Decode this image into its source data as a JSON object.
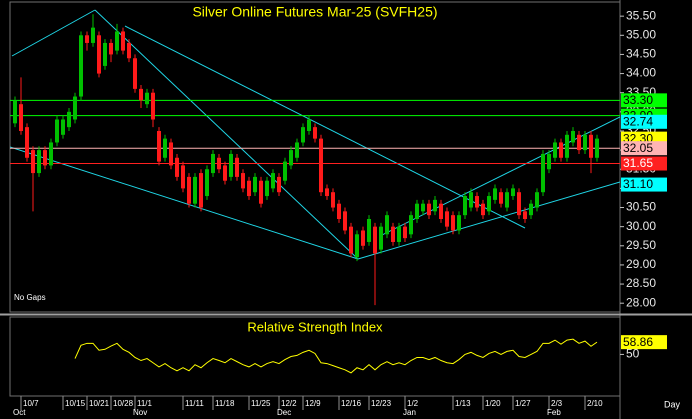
{
  "chart_data": [
    {
      "type": "candlestick",
      "title": "Silver Online Futures Mar-25 (SVFH25)",
      "note": "No Gaps",
      "x_unit_label": "Day",
      "categories": [
        null,
        "10/7",
        null,
        null,
        null,
        null,
        null,
        null,
        "10/15",
        null,
        null,
        null,
        "10/21",
        null,
        null,
        null,
        "10/28",
        null,
        null,
        null,
        "11/1",
        null,
        null,
        null,
        null,
        null,
        null,
        null,
        "11/11",
        null,
        null,
        null,
        null,
        "11/18",
        null,
        null,
        null,
        null,
        null,
        "11/25",
        null,
        null,
        null,
        null,
        "12/2",
        null,
        null,
        null,
        "12/9",
        null,
        null,
        null,
        null,
        null,
        "12/16",
        null,
        null,
        null,
        null,
        "12/23",
        null,
        null,
        null,
        null,
        null,
        "1/2",
        null,
        null,
        null,
        null,
        null,
        null,
        null,
        "1/13",
        null,
        null,
        null,
        null,
        "1/20",
        null,
        null,
        null,
        null,
        "1/27",
        null,
        null,
        null,
        null,
        null,
        "2/3",
        null,
        null,
        null,
        null,
        null,
        "2/10",
        null,
        null
      ],
      "months": [
        "Oct",
        null,
        null,
        null,
        null,
        null,
        null,
        null,
        null,
        null,
        null,
        null,
        null,
        null,
        null,
        null,
        null,
        null,
        null,
        null,
        "Nov",
        null,
        null,
        null,
        null,
        null,
        null,
        null,
        null,
        null,
        null,
        null,
        null,
        null,
        null,
        null,
        null,
        null,
        null,
        null,
        null,
        null,
        null,
        null,
        "Dec",
        null,
        null,
        null,
        null,
        null,
        null,
        null,
        null,
        null,
        null,
        null,
        null,
        null,
        null,
        null,
        null,
        null,
        null,
        null,
        null,
        "Jan",
        null,
        null,
        null,
        null,
        null,
        null,
        null,
        null,
        null,
        null,
        null,
        null,
        null,
        null,
        null,
        null,
        null,
        null,
        null,
        null,
        null,
        null,
        null,
        "Feb",
        null,
        null,
        null,
        null,
        null,
        null,
        null,
        null
      ],
      "open": [
        32.7,
        33.2,
        32.6,
        32.0,
        31.4,
        32.0,
        31.6,
        32.2,
        32.4,
        32.6,
        32.8,
        33.4,
        35.0,
        34.8,
        35.0,
        34.2,
        34.8,
        34.6,
        35.1,
        34.8,
        34.4,
        33.6,
        33.2,
        33.5,
        32.5,
        31.8,
        32.2,
        31.8,
        31.6,
        31.3,
        30.6,
        31.4,
        30.8,
        31.4,
        31.8,
        31.6,
        31.3,
        31.8,
        31.4,
        31.2,
        30.9,
        31.2,
        30.8,
        31.0,
        31.3,
        31.2,
        31.6,
        31.8,
        32.2,
        32.5,
        32.6,
        32.3,
        31.0,
        30.9,
        30.6,
        30.4,
        30.0,
        29.2,
        29.9,
        29.6,
        30.0,
        29.4,
        29.8,
        30.0,
        29.6,
        30.0,
        29.8,
        30.2,
        30.4,
        30.6,
        30.4,
        30.6,
        30.4,
        30.3,
        29.9,
        30.3,
        30.5,
        30.8,
        30.6,
        30.4,
        30.7,
        30.9,
        30.5,
        30.8,
        30.9,
        30.4,
        30.3,
        30.5,
        30.9,
        31.5,
        31.8,
        32.2,
        31.8,
        32.2,
        32.4,
        32.0,
        32.4,
        31.8
      ],
      "high": [
        33.4,
        33.9,
        32.7,
        32.1,
        32.1,
        32.1,
        32.3,
        32.9,
        32.9,
        33.1,
        33.5,
        35.1,
        35.1,
        35.55,
        35.1,
        34.9,
        34.9,
        35.3,
        35.2,
        34.9,
        34.5,
        33.7,
        33.6,
        33.6,
        32.6,
        32.4,
        32.3,
        31.9,
        31.7,
        31.4,
        31.4,
        31.5,
        31.6,
        32.0,
        31.9,
        31.7,
        32.0,
        31.9,
        31.5,
        31.3,
        31.4,
        31.3,
        31.3,
        31.5,
        31.4,
        31.8,
        32.1,
        32.3,
        32.7,
        32.9,
        32.7,
        32.4,
        31.1,
        31.0,
        30.7,
        30.5,
        30.1,
        29.9,
        30.0,
        30.3,
        30.1,
        30.1,
        30.4,
        30.1,
        30.1,
        30.1,
        30.4,
        30.7,
        30.7,
        30.7,
        30.8,
        30.7,
        30.5,
        30.4,
        30.4,
        30.9,
        31.0,
        30.9,
        30.7,
        30.9,
        31.1,
        31.0,
        31.0,
        31.1,
        31.0,
        30.5,
        30.7,
        31.0,
        32.0,
        32.0,
        32.3,
        32.3,
        32.5,
        32.6,
        32.5,
        32.5,
        32.5,
        32.4
      ],
      "low": [
        32.6,
        32.4,
        31.7,
        30.4,
        31.3,
        31.5,
        31.5,
        32.1,
        32.3,
        32.5,
        32.7,
        33.3,
        34.6,
        34.7,
        33.9,
        34.1,
        34.3,
        34.5,
        34.5,
        34.3,
        33.5,
        33.1,
        33.1,
        32.6,
        31.6,
        31.7,
        31.5,
        31.2,
        30.9,
        30.5,
        30.5,
        30.4,
        30.7,
        31.3,
        31.4,
        31.1,
        31.2,
        31.2,
        30.9,
        30.7,
        30.8,
        30.5,
        30.7,
        30.9,
        30.8,
        31.1,
        31.5,
        31.7,
        32.1,
        32.4,
        32.2,
        30.8,
        30.7,
        30.4,
        30.1,
        29.8,
        29.2,
        29.1,
        29.4,
        29.5,
        27.95,
        29.3,
        29.7,
        29.5,
        29.5,
        29.6,
        29.7,
        30.1,
        30.3,
        30.2,
        30.3,
        30.1,
        29.9,
        29.8,
        29.8,
        30.2,
        30.4,
        30.4,
        30.2,
        30.3,
        30.6,
        30.5,
        30.4,
        30.7,
        30.2,
        30.1,
        30.2,
        30.4,
        30.8,
        31.4,
        31.7,
        31.7,
        31.7,
        32.1,
        31.9,
        31.9,
        31.4,
        31.7
      ],
      "close": [
        33.3,
        32.5,
        31.8,
        31.4,
        32.0,
        31.6,
        32.2,
        32.8,
        32.8,
        33.0,
        33.4,
        35.0,
        34.8,
        35.2,
        34.0,
        34.8,
        34.5,
        35.1,
        34.6,
        34.4,
        33.6,
        33.3,
        33.5,
        32.8,
        31.7,
        32.3,
        31.6,
        31.3,
        31.0,
        30.6,
        31.3,
        30.5,
        31.5,
        31.9,
        31.5,
        31.2,
        31.9,
        31.3,
        31.0,
        30.8,
        31.3,
        30.6,
        31.2,
        31.4,
        30.9,
        31.7,
        32.0,
        32.2,
        32.6,
        32.8,
        32.3,
        30.9,
        30.8,
        30.5,
        30.2,
        29.9,
        29.3,
        29.8,
        29.5,
        30.2,
        29.3,
        30.0,
        30.3,
        29.6,
        30.0,
        29.7,
        30.3,
        30.6,
        30.6,
        30.3,
        30.7,
        30.2,
        30.0,
        29.9,
        30.3,
        30.8,
        30.9,
        30.5,
        30.3,
        30.8,
        31.0,
        30.6,
        30.9,
        31.0,
        30.3,
        30.2,
        30.6,
        30.9,
        31.9,
        31.9,
        32.2,
        31.8,
        32.4,
        32.5,
        32.0,
        32.4,
        31.8,
        32.3
      ],
      "up_color": "#00c000",
      "down_color": "#ff1a1a",
      "ylim": [
        27.77,
        35.87
      ],
      "yticks": [
        {
          "value": 28,
          "label": "28.00"
        },
        {
          "value": 28.5,
          "label": "28.50"
        },
        {
          "value": 29,
          "label": "29.00"
        },
        {
          "value": 29.5,
          "label": "29.50"
        },
        {
          "value": 30,
          "label": "30.00"
        },
        {
          "value": 30.5,
          "label": "30.50"
        },
        {
          "value": 31,
          "label": "31.00"
        },
        {
          "value": 31.5,
          "label": "31.50"
        },
        {
          "value": 32,
          "label": "32.00"
        },
        {
          "value": 32.5,
          "label": "32.50"
        },
        {
          "value": 33,
          "label": "33.00"
        },
        {
          "value": 33.5,
          "label": "33.50"
        },
        {
          "value": 34,
          "label": "34.00"
        },
        {
          "value": 34.5,
          "label": "34.50"
        },
        {
          "value": 35,
          "label": "35.00"
        },
        {
          "value": 35.5,
          "label": "35.50"
        }
      ],
      "levels": [
        {
          "value": 33.3,
          "label": "33.30",
          "color": "#00ff00",
          "text_color": "#000000",
          "line": true
        },
        {
          "value": 32.9,
          "label": "32.90",
          "color": "#00ff00",
          "text_color": "#000000",
          "line": true
        },
        {
          "value": 32.74,
          "label": "32.74",
          "color": "#00ffff",
          "text_color": "#000000",
          "line": false
        },
        {
          "value": 32.3,
          "label": "32.30",
          "color": "#ffff00",
          "text_color": "#000000",
          "line": false
        },
        {
          "value": 32.05,
          "label": "32.05",
          "color": "#ffb4b4",
          "text_color": "#000000",
          "line": true
        },
        {
          "value": 31.65,
          "label": "31.65",
          "color": "#ff2020",
          "text_color": "#ffffff",
          "line": true
        },
        {
          "value": 31.1,
          "label": "31.10",
          "color": "#00ffff",
          "text_color": "#000000",
          "line": false
        }
      ]
    },
    {
      "type": "line",
      "title": "Relative Strength Index",
      "values": [
        null,
        null,
        null,
        null,
        null,
        null,
        null,
        null,
        null,
        null,
        47,
        56.6,
        58,
        58,
        53,
        53.7,
        56,
        58,
        53.7,
        51.5,
        47.8,
        45.6,
        47,
        44,
        41,
        43.4,
        40.4,
        38.2,
        40.4,
        38.2,
        42.6,
        40.4,
        44,
        47,
        45.6,
        44,
        47,
        44.8,
        42.6,
        41,
        43.4,
        41,
        43.4,
        44.8,
        43.4,
        46.3,
        48.5,
        49.3,
        51.5,
        53,
        50.7,
        44,
        43.4,
        41.9,
        40.4,
        38.9,
        36.7,
        40.4,
        38.9,
        42.6,
        38.9,
        42.6,
        44.8,
        42.6,
        44,
        42.6,
        45.6,
        47.8,
        47.8,
        46.3,
        47.8,
        45.6,
        44,
        43.4,
        46.3,
        50,
        51.5,
        49.3,
        47.8,
        50.7,
        52.2,
        50,
        52.2,
        53,
        48.5,
        47.8,
        50,
        52.2,
        58,
        58,
        60.3,
        57.4,
        60.3,
        61,
        58,
        59.6,
        55.9,
        58.86
      ],
      "color": "#ffff00",
      "last_label": true,
      "ylim": [
        20,
        77
      ],
      "yticks": [
        50
      ]
    }
  ]
}
